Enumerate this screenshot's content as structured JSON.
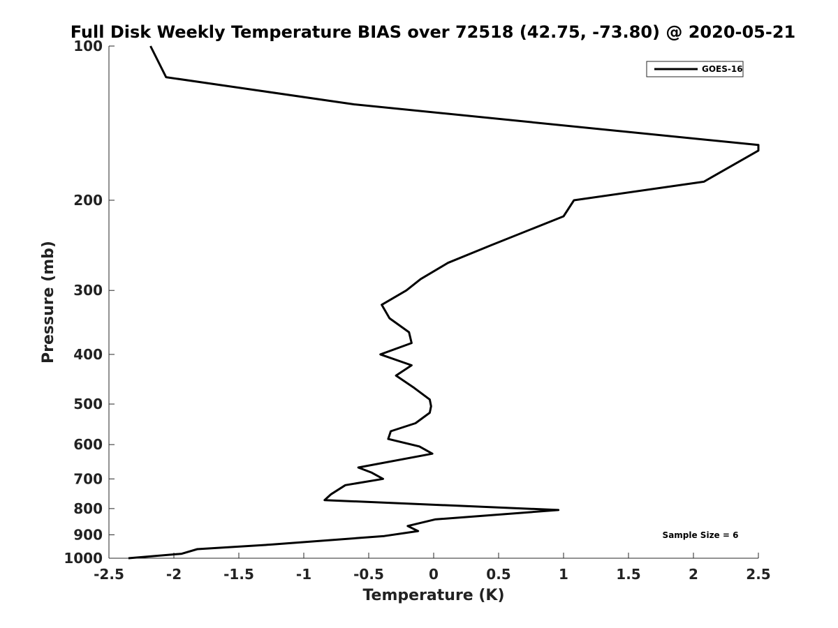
{
  "chart_data": {
    "type": "line",
    "title": "Full Disk Weekly Temperature BIAS over 72518 (42.75, -73.80) @ 2020-05-21",
    "xlabel": "Temperature (K)",
    "ylabel": "Pressure (mb)",
    "xlim": [
      -2.5,
      2.5
    ],
    "ylim": [
      1000,
      100
    ],
    "y_scale": "log",
    "x_ticks": [
      -2.5,
      -2,
      -1.5,
      -1,
      -0.5,
      0,
      0.5,
      1,
      1.5,
      2,
      2.5
    ],
    "x_tick_labels": [
      "-2.5",
      "-2",
      "-1.5",
      "-1",
      "-0.5",
      "0",
      "0.5",
      "1",
      "1.5",
      "2",
      "2.5"
    ],
    "y_ticks": [
      100,
      200,
      300,
      400,
      500,
      600,
      700,
      800,
      900,
      1000
    ],
    "y_tick_labels": [
      "100",
      "200",
      "300",
      "400",
      "500",
      "600",
      "700",
      "800",
      "900",
      "1000"
    ],
    "legend": {
      "location": "top-right",
      "entries": [
        "GOES-16"
      ]
    },
    "annotation": "Sample Size = 6",
    "series": [
      {
        "name": "GOES-16",
        "color": "#000000",
        "points": [
          {
            "t": -2.18,
            "p": 100
          },
          {
            "t": -2.06,
            "p": 115
          },
          {
            "t": -0.61,
            "p": 130
          },
          {
            "t": 2.5,
            "p": 156
          },
          {
            "t": 2.5,
            "p": 160
          },
          {
            "t": 2.08,
            "p": 184
          },
          {
            "t": 1.08,
            "p": 200
          },
          {
            "t": 1.0,
            "p": 215
          },
          {
            "t": 0.44,
            "p": 245
          },
          {
            "t": 0.11,
            "p": 265
          },
          {
            "t": -0.1,
            "p": 285
          },
          {
            "t": -0.21,
            "p": 300
          },
          {
            "t": -0.4,
            "p": 320
          },
          {
            "t": -0.34,
            "p": 340
          },
          {
            "t": -0.19,
            "p": 362
          },
          {
            "t": -0.17,
            "p": 380
          },
          {
            "t": -0.41,
            "p": 400
          },
          {
            "t": -0.17,
            "p": 420
          },
          {
            "t": -0.29,
            "p": 440
          },
          {
            "t": -0.15,
            "p": 465
          },
          {
            "t": -0.03,
            "p": 490
          },
          {
            "t": -0.02,
            "p": 505
          },
          {
            "t": -0.03,
            "p": 520
          },
          {
            "t": -0.14,
            "p": 545
          },
          {
            "t": -0.33,
            "p": 565
          },
          {
            "t": -0.35,
            "p": 585
          },
          {
            "t": -0.11,
            "p": 605
          },
          {
            "t": -0.01,
            "p": 625
          },
          {
            "t": -0.58,
            "p": 665
          },
          {
            "t": -0.48,
            "p": 680
          },
          {
            "t": -0.39,
            "p": 700
          },
          {
            "t": -0.68,
            "p": 720
          },
          {
            "t": -0.79,
            "p": 750
          },
          {
            "t": -0.84,
            "p": 770
          },
          {
            "t": 0.96,
            "p": 805
          },
          {
            "t": 0.01,
            "p": 840
          },
          {
            "t": -0.2,
            "p": 865
          },
          {
            "t": -0.12,
            "p": 885
          },
          {
            "t": -0.38,
            "p": 905
          },
          {
            "t": -1.24,
            "p": 940
          },
          {
            "t": -1.82,
            "p": 960
          },
          {
            "t": -1.94,
            "p": 980
          },
          {
            "t": -2.35,
            "p": 1000
          }
        ]
      }
    ]
  }
}
